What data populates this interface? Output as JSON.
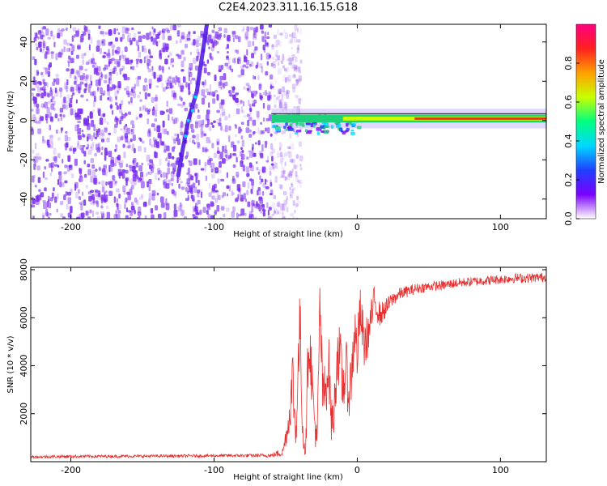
{
  "title": "C2E4.2023.311.16.15.G18",
  "colors": {
    "snr_line": "#e83030",
    "spectrogram_scatter": "#7a2cf0",
    "strong_band": "#1fd07a",
    "axes": "#000000"
  },
  "chart_data": [
    {
      "type": "heatmap",
      "xlabel": "Height of straight line (km)",
      "ylabel": "Frequency (Hz)",
      "xlim": [
        -228,
        132
      ],
      "ylim": [
        -50,
        49
      ],
      "xticks": [
        -200,
        -100,
        0,
        100
      ],
      "xtick_labels": [
        "-200",
        "-100",
        "0",
        "100"
      ],
      "yticks": [
        -40,
        -20,
        0,
        20,
        40
      ],
      "ytick_labels": [
        "-40",
        "-20",
        "0",
        "20",
        "40"
      ],
      "colorbar": {
        "label": "Normalized spectral amplitude",
        "range": [
          0,
          1
        ],
        "ticks": [
          0.0,
          0.2,
          0.4,
          0.6,
          0.8
        ],
        "tick_labels": [
          "0.0",
          "0.2",
          "0.4",
          "0.6",
          "0.8"
        ],
        "colormap": [
          "#ffffff",
          "#7a00ff",
          "#2040ff",
          "#00d8ff",
          "#00ff80",
          "#c8ff00",
          "#ffa000",
          "#ff2020",
          "#ff0080"
        ]
      },
      "features": {
        "noise_region_x": [
          -228,
          -48
        ],
        "descending_trace": {
          "x": [
            -105,
            -112,
            -118,
            -122,
            -125
          ],
          "y": [
            49,
            15,
            0,
            -15,
            -28
          ]
        },
        "carrier_band": {
          "x": [
            -60,
            132
          ],
          "y": [
            0,
            2
          ],
          "peak_y": 1
        }
      },
      "grid": false
    },
    {
      "type": "line",
      "xlabel": "Height of straight line (km)",
      "ylabel": "SNR (10 * v/v)",
      "xlim": [
        -228,
        132
      ],
      "ylim": [
        0,
        8100
      ],
      "xticks": [
        -200,
        -100,
        0,
        100
      ],
      "xtick_labels": [
        "-200",
        "-100",
        "0",
        "100"
      ],
      "yticks": [
        2000,
        4000,
        6000,
        8000
      ],
      "ytick_labels": [
        "2000",
        "4000",
        "6000",
        "8000"
      ],
      "series": [
        {
          "x": [
            -228,
            -200,
            -150,
            -100,
            -60,
            -52,
            -48,
            -45,
            -43,
            -40,
            -38,
            -36,
            -34,
            -32,
            -30,
            -28,
            -26,
            -24,
            -22,
            -20,
            -18,
            -16,
            -14,
            -12,
            -10,
            -8,
            -6,
            -4,
            -2,
            0,
            2,
            5,
            8,
            12,
            16,
            20,
            25,
            30,
            40,
            50,
            60,
            70,
            80,
            90,
            100,
            110,
            120,
            132
          ],
          "y": [
            200,
            220,
            230,
            250,
            260,
            400,
            1600,
            3500,
            1000,
            5800,
            1200,
            500,
            5400,
            3800,
            1800,
            800,
            6600,
            2600,
            3100,
            4200,
            1600,
            2200,
            4600,
            4300,
            3000,
            4000,
            2800,
            3600,
            5500,
            4500,
            6200,
            4800,
            5400,
            6700,
            6100,
            6400,
            6800,
            7000,
            7200,
            7300,
            7350,
            7450,
            7500,
            7550,
            7600,
            7650,
            7650,
            7700
          ],
          "noise_amplitude": [
            60,
            60,
            60,
            60,
            80,
            200,
            600,
            1500,
            800,
            1600,
            900,
            400,
            1500,
            1200,
            1000,
            600,
            1600,
            1200,
            1300,
            1300,
            1000,
            1100,
            1400,
            1300,
            1200,
            1300,
            1100,
            1200,
            1300,
            1200,
            1100,
            1000,
            900,
            700,
            500,
            400,
            300,
            260,
            220,
            200,
            200,
            200,
            200,
            200,
            200,
            200,
            200,
            200
          ]
        }
      ],
      "grid": false
    }
  ]
}
